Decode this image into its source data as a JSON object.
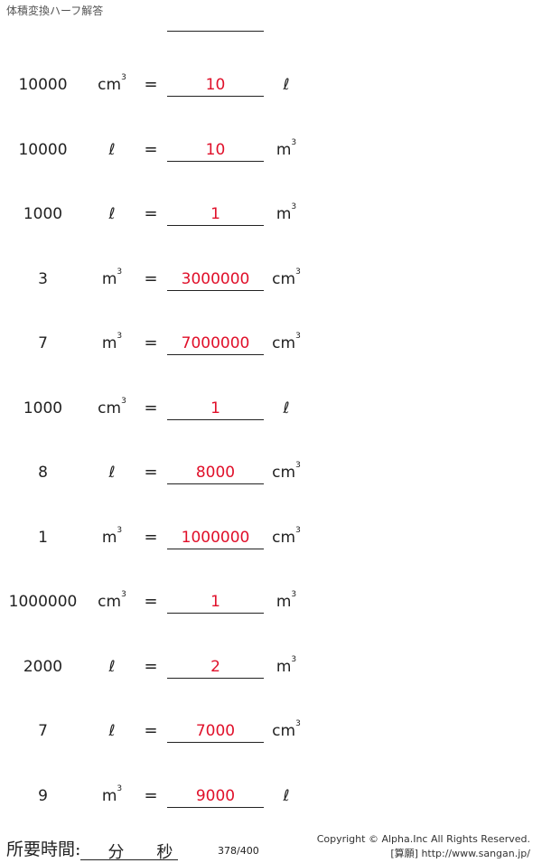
{
  "header": {
    "title": "体積変換ハーフ解答"
  },
  "problems": [
    {
      "value": "10000",
      "from_unit": "cm",
      "from_sup": "3",
      "answer": "10",
      "to_unit": "ℓ",
      "to_sup": ""
    },
    {
      "value": "10000",
      "from_unit": "ℓ",
      "from_sup": "",
      "answer": "10",
      "to_unit": "m",
      "to_sup": "3"
    },
    {
      "value": "1000",
      "from_unit": "ℓ",
      "from_sup": "",
      "answer": "1",
      "to_unit": "m",
      "to_sup": "3"
    },
    {
      "value": "3",
      "from_unit": "m",
      "from_sup": "3",
      "answer": "3000000",
      "to_unit": "cm",
      "to_sup": "3"
    },
    {
      "value": "7",
      "from_unit": "m",
      "from_sup": "3",
      "answer": "7000000",
      "to_unit": "cm",
      "to_sup": "3"
    },
    {
      "value": "1000",
      "from_unit": "cm",
      "from_sup": "3",
      "answer": "1",
      "to_unit": "ℓ",
      "to_sup": ""
    },
    {
      "value": "8",
      "from_unit": "ℓ",
      "from_sup": "",
      "answer": "8000",
      "to_unit": "cm",
      "to_sup": "3"
    },
    {
      "value": "1",
      "from_unit": "m",
      "from_sup": "3",
      "answer": "1000000",
      "to_unit": "cm",
      "to_sup": "3"
    },
    {
      "value": "1000000",
      "from_unit": "cm",
      "from_sup": "3",
      "answer": "1",
      "to_unit": "m",
      "to_sup": "3"
    },
    {
      "value": "2000",
      "from_unit": "ℓ",
      "from_sup": "",
      "answer": "2",
      "to_unit": "m",
      "to_sup": "3"
    },
    {
      "value": "7",
      "from_unit": "ℓ",
      "from_sup": "",
      "answer": "7000",
      "to_unit": "cm",
      "to_sup": "3"
    },
    {
      "value": "9",
      "from_unit": "m",
      "from_sup": "3",
      "answer": "9000",
      "to_unit": "ℓ",
      "to_sup": ""
    }
  ],
  "equals": "=",
  "footer": {
    "time_label": "所要時間:",
    "minutes": "分",
    "seconds": "秒",
    "page": "378/400",
    "copyright": "Copyright © Alpha.Inc All Rights Reserved.",
    "site": "[算願] http://www.sangan.jp/"
  },
  "colors": {
    "answer": "#e0102a"
  }
}
